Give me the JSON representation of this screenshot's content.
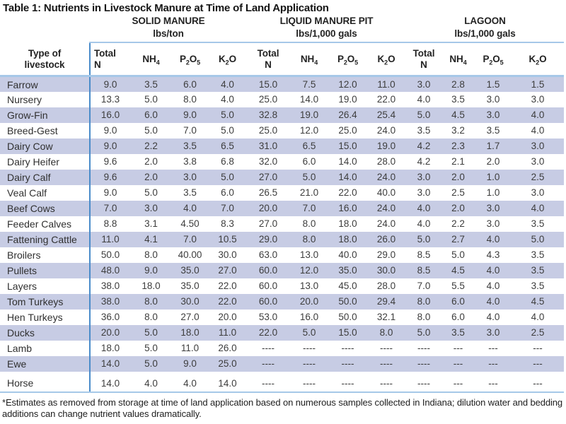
{
  "title": "Table 1: Nutrients in Livestock Manure at Time of Land Application",
  "row_header": {
    "line1": "Type of",
    "line2": "livestock"
  },
  "groups": [
    {
      "key": "solid-manure",
      "name": "SOLID MANURE",
      "units": "lbs/ton"
    },
    {
      "key": "liquid-manure-pit",
      "name": "LIQUID MANURE PIT",
      "units": "lbs/1,000 gals"
    },
    {
      "key": "lagoon",
      "name": "LAGOON",
      "units": "lbs/1,000 gals"
    }
  ],
  "sub_columns": [
    {
      "name": "total-n",
      "lines": [
        "Total",
        "N"
      ]
    },
    {
      "name": "nh4",
      "segments": [
        [
          "NH",
          false
        ],
        [
          "4",
          true
        ]
      ]
    },
    {
      "name": "p2o5",
      "segments": [
        [
          "P",
          false
        ],
        [
          "2",
          true
        ],
        [
          "O",
          false
        ],
        [
          "5",
          true
        ]
      ]
    },
    {
      "name": "k2o",
      "segments": [
        [
          "K",
          false
        ],
        [
          "2",
          true
        ],
        [
          "O",
          false
        ]
      ]
    }
  ],
  "rows": [
    {
      "livestock": "Farrow",
      "values": [
        "9.0",
        "3.5",
        "6.0",
        "4.0",
        "15.0",
        "7.5",
        "12.0",
        "11.0",
        "3.0",
        "2.8",
        "1.5",
        "1.5"
      ]
    },
    {
      "livestock": "Nursery",
      "values": [
        "13.3",
        "5.0",
        "8.0",
        "4.0",
        "25.0",
        "14.0",
        "19.0",
        "22.0",
        "4.0",
        "3.5",
        "3.0",
        "3.0"
      ]
    },
    {
      "livestock": "Grow-Fin",
      "values": [
        "16.0",
        "6.0",
        "9.0",
        "5.0",
        "32.8",
        "19.0",
        "26.4",
        "25.4",
        "5.0",
        "4.5",
        "3.0",
        "4.0"
      ]
    },
    {
      "livestock": "Breed-Gest",
      "values": [
        "9.0",
        "5.0",
        "7.0",
        "5.0",
        "25.0",
        "12.0",
        "25.0",
        "24.0",
        "3.5",
        "3.2",
        "3.5",
        "4.0"
      ]
    },
    {
      "livestock": "Dairy Cow",
      "values": [
        "9.0",
        "2.2",
        "3.5",
        "6.5",
        "31.0",
        "6.5",
        "15.0",
        "19.0",
        "4.2",
        "2.3",
        "1.7",
        "3.0"
      ]
    },
    {
      "livestock": "Dairy Heifer",
      "values": [
        "9.6",
        "2.0",
        "3.8",
        "6.8",
        "32.0",
        "6.0",
        "14.0",
        "28.0",
        "4.2",
        "2.1",
        "2.0",
        "3.0"
      ]
    },
    {
      "livestock": "Dairy Calf",
      "values": [
        "9.6",
        "2.0",
        "3.0",
        "5.0",
        "27.0",
        "5.0",
        "14.0",
        "24.0",
        "3.0",
        "2.0",
        "1.0",
        "2.5"
      ]
    },
    {
      "livestock": "Veal Calf",
      "values": [
        "9.0",
        "5.0",
        "3.5",
        "6.0",
        "26.5",
        "21.0",
        "22.0",
        "40.0",
        "3.0",
        "2.5",
        "1.0",
        "3.0"
      ]
    },
    {
      "livestock": "Beef Cows",
      "values": [
        "7.0",
        "3.0",
        "4.0",
        "7.0",
        "20.0",
        "7.0",
        "16.0",
        "24.0",
        "4.0",
        "2.0",
        "3.0",
        "4.0"
      ]
    },
    {
      "livestock": "Feeder Calves",
      "values": [
        "8.8",
        "3.1",
        "4.50",
        "8.3",
        "27.0",
        "8.0",
        "18.0",
        "24.0",
        "4.0",
        "2.2",
        "3.0",
        "3.5"
      ]
    },
    {
      "livestock": "Fattening Cattle",
      "values": [
        "11.0",
        "4.1",
        "7.0",
        "10.5",
        "29.0",
        "8.0",
        "18.0",
        "26.0",
        "5.0",
        "2.7",
        "4.0",
        "5.0"
      ]
    },
    {
      "livestock": "Broilers",
      "values": [
        "50.0",
        "8.0",
        "40.00",
        "30.0",
        "63.0",
        "13.0",
        "40.0",
        "29.0",
        "8.5",
        "5.0",
        "4.3",
        "3.5"
      ]
    },
    {
      "livestock": "Pullets",
      "values": [
        "48.0",
        "9.0",
        "35.0",
        "27.0",
        "60.0",
        "12.0",
        "35.0",
        "30.0",
        "8.5",
        "4.5",
        "4.0",
        "3.5"
      ]
    },
    {
      "livestock": "Layers",
      "values": [
        "38.0",
        "18.0",
        "35.0",
        "22.0",
        "60.0",
        "13.0",
        "45.0",
        "28.0",
        "7.0",
        "5.5",
        "4.0",
        "3.5"
      ]
    },
    {
      "livestock": "Tom Turkeys",
      "values": [
        "38.0",
        "8.0",
        "30.0",
        "22.0",
        "60.0",
        "20.0",
        "50.0",
        "29.4",
        "8.0",
        "6.0",
        "4.0",
        "4.5"
      ]
    },
    {
      "livestock": "Hen Turkeys",
      "values": [
        "36.0",
        "8.0",
        "27.0",
        "20.0",
        "53.0",
        "16.0",
        "50.0",
        "32.1",
        "8.0",
        "6.0",
        "4.0",
        "4.0"
      ]
    },
    {
      "livestock": "Ducks",
      "values": [
        "20.0",
        "5.0",
        "18.0",
        "11.0",
        "22.0",
        "5.0",
        "15.0",
        "8.0",
        "5.0",
        "3.5",
        "3.0",
        "2.5"
      ]
    },
    {
      "livestock": "Lamb",
      "values": [
        "18.0",
        "5.0",
        "11.0",
        "26.0",
        "----",
        "----",
        "----",
        "----",
        "----",
        "---",
        "---",
        "---"
      ]
    },
    {
      "livestock": "Ewe",
      "values": [
        "14.0",
        "5.0",
        "9.0",
        "25.0",
        "----",
        "----",
        "----",
        "----",
        "----",
        "---",
        "---",
        "---"
      ]
    },
    {
      "livestock": "Horse",
      "values": [
        "14.0",
        "4.0",
        "4.0",
        "14.0",
        "----",
        "----",
        "----",
        "----",
        "----",
        "---",
        "---",
        "---"
      ]
    }
  ],
  "footnote": "*Estimates as removed from storage at time of land application based on numerous samples collected in Indiana; dilution water and bedding additions can change nutrient values dramatically.",
  "colors": {
    "band": "#c7cce4",
    "rule_light": "#a6c8e8",
    "rule_dark": "#4a8cca"
  }
}
